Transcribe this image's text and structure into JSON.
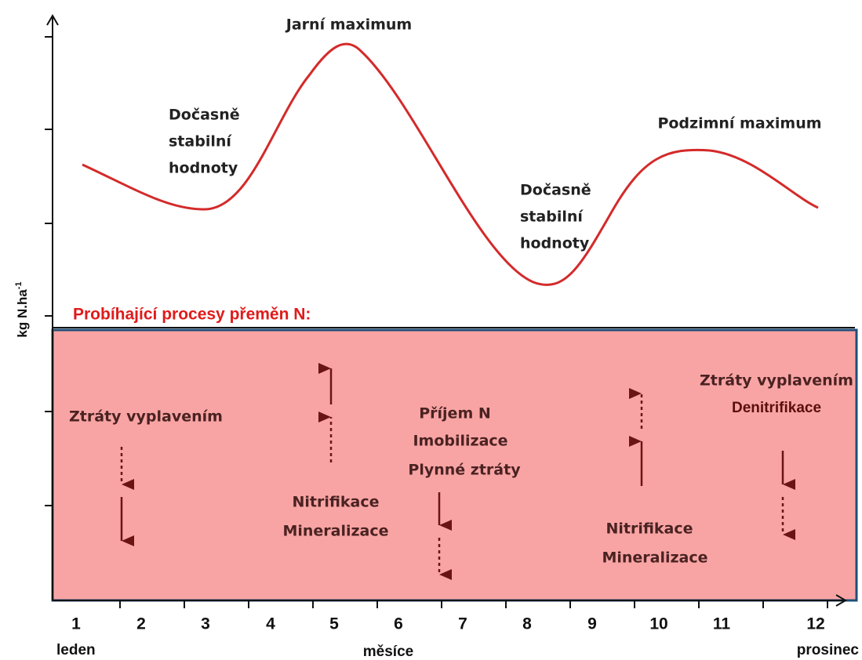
{
  "y_axis": {
    "label": "kg N.ha",
    "superscript": "-1"
  },
  "x_axis": {
    "ticks": [
      "1",
      "2",
      "3",
      "4",
      "5",
      "6",
      "7",
      "8",
      "9",
      "10",
      "11",
      "12"
    ],
    "label": "měsíce",
    "start_label": "leden",
    "end_label": "prosinec"
  },
  "curve_annotations": {
    "early_stable": [
      "Dočasně",
      "stabilní",
      "hodnoty"
    ],
    "spring_maximum": "Jarní maximum",
    "late_stable": [
      "Dočasně",
      "stabilní",
      "hodnoty"
    ],
    "autumn_maximum": "Podzimní maximum"
  },
  "processes_title": "Probíhající procesy přeměn N:",
  "processes": {
    "leaching_1": "Ztráty vyplavením",
    "mineralization_1": [
      "Nitrifikace",
      "Mineralizace"
    ],
    "uptake": [
      "Příjem N",
      "Imobilizace",
      "Plynné ztráty"
    ],
    "mineralization_2": [
      "Nitrifikace",
      "Mineralizace"
    ],
    "leaching_2": [
      "Ztráty vyplavením",
      "Denitrifikace"
    ]
  }
}
